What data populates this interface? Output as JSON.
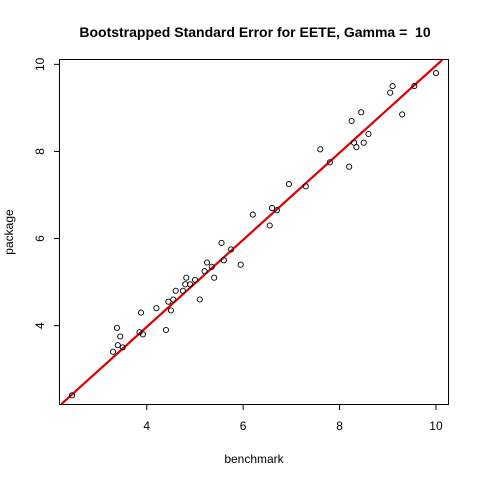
{
  "chart_data": {
    "type": "scatter",
    "title": "Bootstrapped Standard Error for EETE, Gamma =  10",
    "xlabel": "benchmark",
    "ylabel": "package",
    "xlim": [
      2.2,
      10.25
    ],
    "ylim": [
      2.2,
      10.1
    ],
    "xticks": [
      4,
      6,
      8,
      10
    ],
    "yticks": [
      4,
      6,
      8,
      10
    ],
    "tick_labels": {
      "x": [
        "4",
        "6",
        "8",
        "10"
      ],
      "y": [
        "4",
        "6",
        "8",
        "10"
      ]
    },
    "grid": false,
    "legend": "none",
    "point_color": "#000000",
    "line_color": "#dd0000",
    "fit_line": {
      "intercept": -0.03,
      "slope": 1.0
    },
    "points": [
      [
        2.45,
        2.4
      ],
      [
        3.3,
        3.4
      ],
      [
        3.4,
        3.55
      ],
      [
        3.5,
        3.5
      ],
      [
        3.45,
        3.75
      ],
      [
        3.38,
        3.95
      ],
      [
        3.85,
        3.85
      ],
      [
        3.92,
        3.8
      ],
      [
        3.88,
        4.3
      ],
      [
        4.2,
        4.4
      ],
      [
        4.4,
        3.9
      ],
      [
        4.45,
        4.55
      ],
      [
        4.5,
        4.35
      ],
      [
        4.55,
        4.6
      ],
      [
        4.6,
        4.8
      ],
      [
        4.75,
        4.8
      ],
      [
        4.8,
        4.95
      ],
      [
        4.82,
        5.1
      ],
      [
        4.9,
        4.95
      ],
      [
        5.0,
        5.05
      ],
      [
        5.1,
        4.6
      ],
      [
        5.2,
        5.25
      ],
      [
        5.25,
        5.45
      ],
      [
        5.35,
        5.35
      ],
      [
        5.4,
        5.1
      ],
      [
        5.55,
        5.9
      ],
      [
        5.6,
        5.5
      ],
      [
        5.75,
        5.75
      ],
      [
        5.95,
        5.4
      ],
      [
        6.2,
        6.55
      ],
      [
        6.55,
        6.3
      ],
      [
        6.6,
        6.7
      ],
      [
        6.7,
        6.65
      ],
      [
        6.95,
        7.25
      ],
      [
        7.3,
        7.2
      ],
      [
        7.6,
        8.05
      ],
      [
        7.8,
        7.75
      ],
      [
        8.2,
        7.65
      ],
      [
        8.25,
        8.7
      ],
      [
        8.3,
        8.2
      ],
      [
        8.35,
        8.1
      ],
      [
        8.45,
        8.9
      ],
      [
        8.5,
        8.2
      ],
      [
        8.6,
        8.4
      ],
      [
        9.05,
        9.35
      ],
      [
        9.1,
        9.5
      ],
      [
        9.3,
        8.85
      ],
      [
        9.55,
        9.5
      ],
      [
        10.0,
        9.8
      ]
    ]
  }
}
